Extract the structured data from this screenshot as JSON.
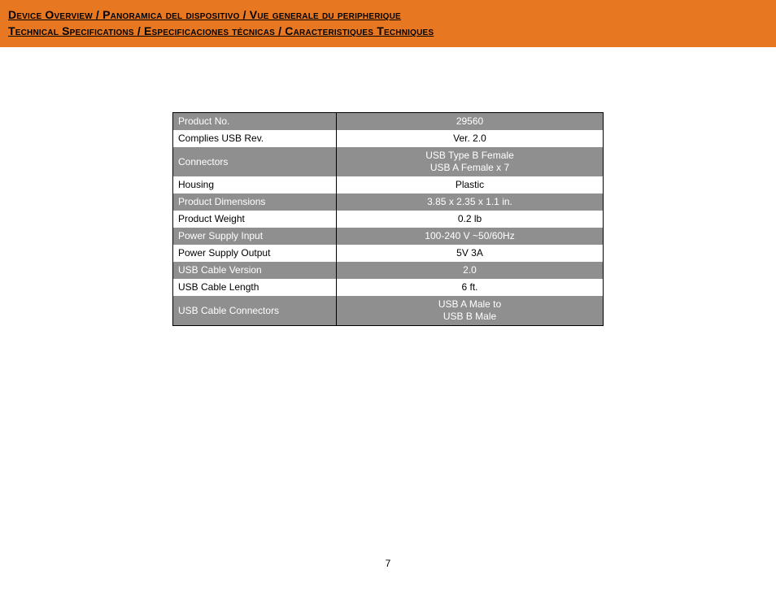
{
  "banner": {
    "background_color": "#e87722",
    "heading1": "Device Overview / Panoramica del dispositivo / Vue generale du peripherique",
    "heading2": "Technical Specifications / Especificaciones técnicas / Caracteristiques Techniques",
    "heading_fontsize": 14,
    "heading_color": "#000000"
  },
  "spec_table": {
    "type": "table",
    "row_colors": {
      "gray": "#8f8f8f",
      "white": "#ffffff"
    },
    "text_colors": {
      "gray": "#ffffff",
      "white": "#000000"
    },
    "border_color": "#000000",
    "columns": [
      {
        "key": "label",
        "align": "left",
        "width_pct": 38
      },
      {
        "key": "value",
        "align": "center",
        "width_pct": 62
      }
    ],
    "rows": [
      {
        "style": "gray",
        "label": "Product No.",
        "value": "29560"
      },
      {
        "style": "white",
        "label": "Complies USB Rev.",
        "value": "Ver. 2.0"
      },
      {
        "style": "gray",
        "label": "Connectors",
        "value_lines": [
          "USB Type B Female",
          "USB A Female x 7"
        ]
      },
      {
        "style": "white",
        "label": "Housing",
        "value": "Plastic"
      },
      {
        "style": "gray",
        "label": "Product Dimensions",
        "value": "3.85 x 2.35 x 1.1 in."
      },
      {
        "style": "white",
        "label": "Product Weight",
        "value": "0.2 lb"
      },
      {
        "style": "gray",
        "label": "Power Supply Input",
        "value": "100-240 V ~50/60Hz"
      },
      {
        "style": "white",
        "label": "Power Supply Output",
        "value": "5V 3A"
      },
      {
        "style": "gray",
        "label": "USB Cable Version",
        "value": "2.0"
      },
      {
        "style": "white",
        "label": "USB Cable Length",
        "value": "6 ft."
      },
      {
        "style": "gray",
        "label": "USB Cable Connectors",
        "value_lines": [
          "USB A Male to",
          "USB B Male"
        ]
      }
    ],
    "fontsize": 12
  },
  "page_number": "7"
}
